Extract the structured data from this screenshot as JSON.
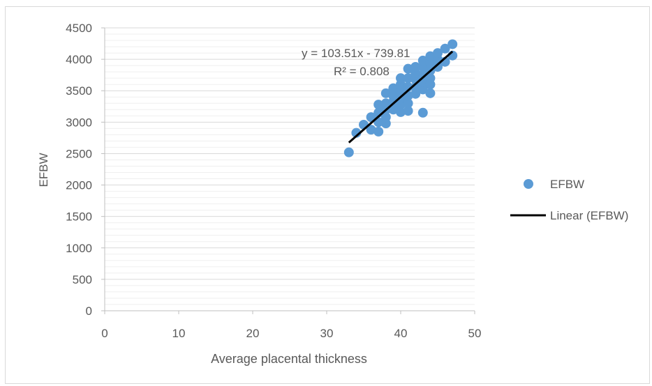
{
  "chart_data": {
    "type": "scatter",
    "title": "",
    "xlabel": "Average placental thickness",
    "ylabel": "EFBW",
    "xlim": [
      0,
      50
    ],
    "ylim": [
      0,
      4500
    ],
    "x_ticks": [
      "0",
      "10",
      "20",
      "30",
      "40",
      "50"
    ],
    "y_ticks": [
      "0",
      "500",
      "1000",
      "1500",
      "2000",
      "2500",
      "3000",
      "3500",
      "4000",
      "4500"
    ],
    "grid": true,
    "legend_position": "right",
    "series": [
      {
        "name": "EFBW",
        "color": "#5b9bd5",
        "points": [
          [
            33,
            2520
          ],
          [
            34,
            2830
          ],
          [
            35,
            2960
          ],
          [
            36,
            2880
          ],
          [
            36,
            3080
          ],
          [
            37,
            2850
          ],
          [
            37,
            3000
          ],
          [
            37,
            3150
          ],
          [
            37,
            3280
          ],
          [
            38,
            2980
          ],
          [
            38,
            3080
          ],
          [
            38,
            3200
          ],
          [
            38,
            3300
          ],
          [
            38,
            3460
          ],
          [
            39,
            3200
          ],
          [
            39,
            3330
          ],
          [
            39,
            3420
          ],
          [
            39,
            3540
          ],
          [
            40,
            3160
          ],
          [
            40,
            3280
          ],
          [
            40,
            3380
          ],
          [
            40,
            3480
          ],
          [
            40,
            3600
          ],
          [
            40,
            3700
          ],
          [
            41,
            3180
          ],
          [
            41,
            3300
          ],
          [
            41,
            3420
          ],
          [
            41,
            3560
          ],
          [
            41,
            3700
          ],
          [
            41,
            3850
          ],
          [
            42,
            3450
          ],
          [
            42,
            3560
          ],
          [
            42,
            3680
          ],
          [
            42,
            3780
          ],
          [
            42,
            3880
          ],
          [
            43,
            3150
          ],
          [
            43,
            3520
          ],
          [
            43,
            3640
          ],
          [
            43,
            3760
          ],
          [
            43,
            3880
          ],
          [
            43,
            3980
          ],
          [
            44,
            3460
          ],
          [
            44,
            3600
          ],
          [
            44,
            3700
          ],
          [
            44,
            3820
          ],
          [
            44,
            3950
          ],
          [
            44,
            4050
          ],
          [
            45,
            3880
          ],
          [
            45,
            4000
          ],
          [
            45,
            4100
          ],
          [
            46,
            3960
          ],
          [
            46,
            4170
          ],
          [
            47,
            4060
          ],
          [
            47,
            4240
          ]
        ]
      }
    ],
    "trendline": {
      "name": "Linear (EFBW)",
      "color": "#000000",
      "slope": 103.51,
      "intercept": -739.81,
      "x_range": [
        33,
        47
      ],
      "equation": "y = 103.51x - 739.81",
      "r_squared": "R² = 0.808"
    },
    "legend": {
      "scatter_label": "EFBW",
      "line_label": "Linear (EFBW)"
    }
  }
}
